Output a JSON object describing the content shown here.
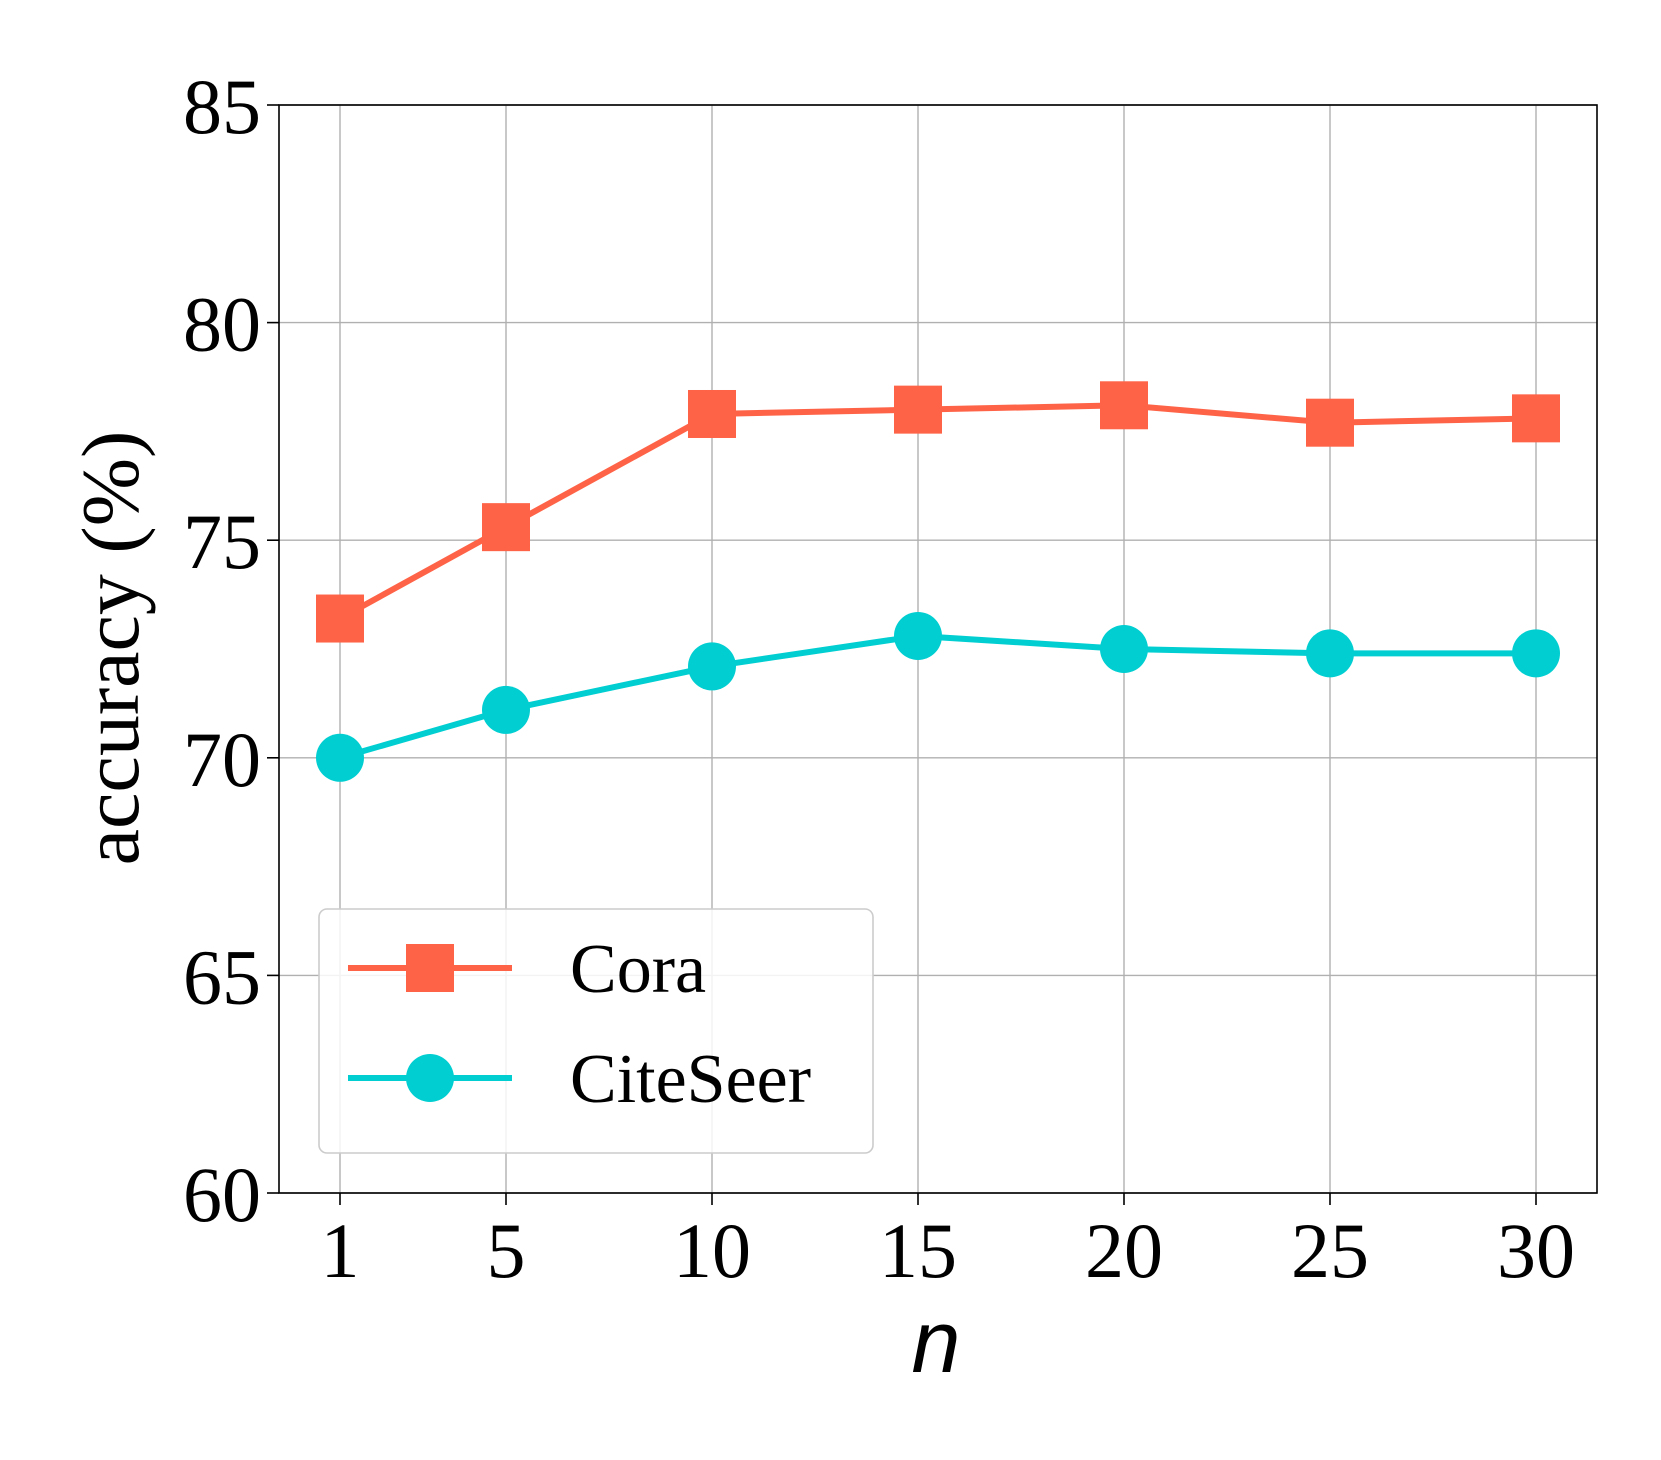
{
  "chart_data": {
    "type": "line",
    "title": "",
    "xlabel": "n",
    "ylabel": "accuracy (%)",
    "categories": [
      "1",
      "5",
      "10",
      "15",
      "20",
      "25",
      "30"
    ],
    "ylim": [
      60,
      85
    ],
    "yticks": [
      "60",
      "65",
      "70",
      "75",
      "80",
      "85"
    ],
    "grid": true,
    "legend_position": "lower-left",
    "series": [
      {
        "name": "Cora",
        "marker": "square",
        "color": "#FF6347",
        "values": [
          73.2,
          75.3,
          77.9,
          78.0,
          78.1,
          77.7,
          77.8
        ]
      },
      {
        "name": "CiteSeer",
        "marker": "circle",
        "color": "#00CED1",
        "values": [
          70.0,
          71.1,
          72.1,
          72.8,
          72.5,
          72.4,
          72.4
        ]
      }
    ]
  }
}
